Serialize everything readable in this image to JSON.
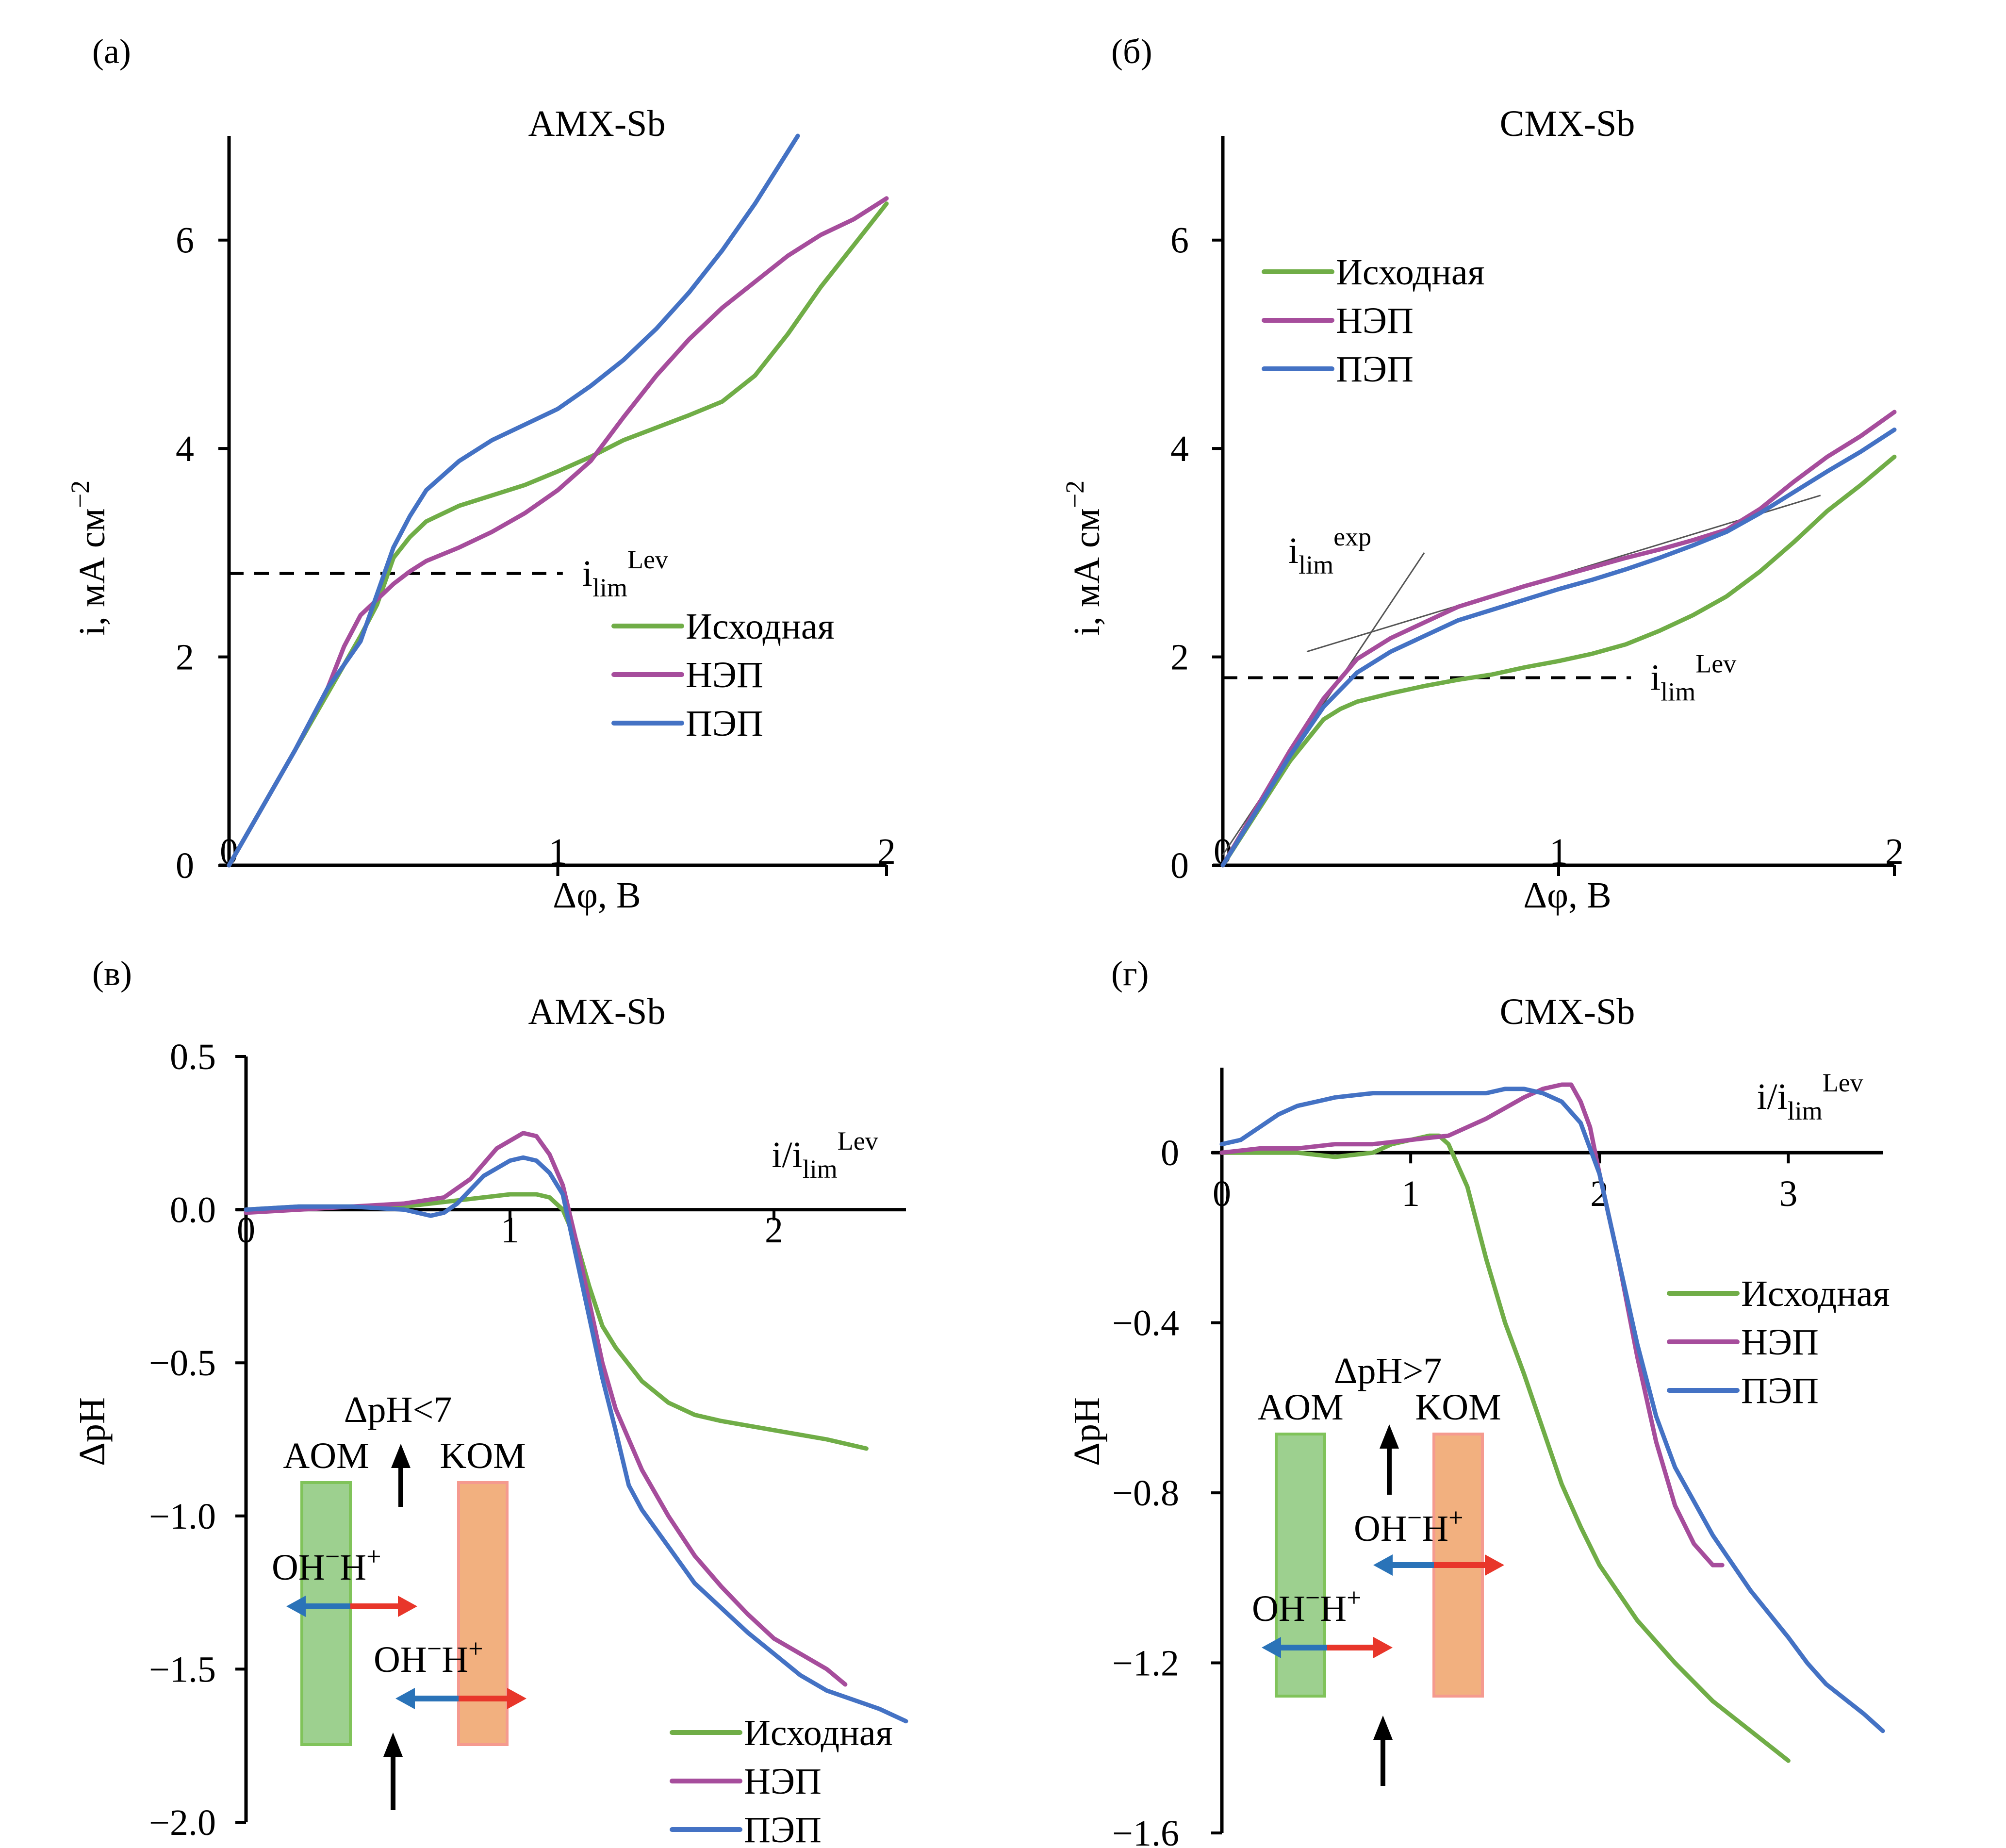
{
  "figure": {
    "colors": {
      "initial": "#70ad47",
      "nep": "#a64d9c",
      "pep": "#4472c4",
      "arrow_oh": "#2a73b8",
      "arrow_h": "#e8362a",
      "aom_fill": "#9dd08f",
      "aom_border": "#80c35a",
      "kom_fill": "#f2b07f",
      "kom_border": "#f59a8f"
    },
    "legend": [
      "Исходная",
      "НЭП",
      "ПЭП"
    ]
  },
  "chart_data": [
    {
      "id": "a",
      "tag": "(а)",
      "type": "line",
      "title": "AMX-Sb",
      "xlabel": "Δφ, В",
      "ylabel": "i, мА см",
      "ylabel_sup": "−2",
      "xlim": [
        0,
        2
      ],
      "ylim": [
        0,
        7
      ],
      "xticks": [
        0,
        1,
        2
      ],
      "yticks": [
        0,
        2,
        4,
        6
      ],
      "xtick_labels": [
        "0",
        "1",
        "2"
      ],
      "ytick_labels": [
        "0",
        "2",
        "4",
        "6"
      ],
      "grid": false,
      "legend_position": "center-right",
      "hline": {
        "y": 2.8,
        "x_end": 1.03,
        "label": "i",
        "label_sub": "lim",
        "label_sup": "Lev"
      },
      "series": [
        {
          "name": "Исходная",
          "x": [
            0,
            0.1,
            0.2,
            0.3,
            0.4,
            0.45,
            0.5,
            0.55,
            0.6,
            0.7,
            0.8,
            0.9,
            1.0,
            1.1,
            1.2,
            1.3,
            1.4,
            1.5,
            1.6,
            1.7,
            1.8,
            1.9,
            2.0
          ],
          "y": [
            0,
            0.55,
            1.1,
            1.65,
            2.2,
            2.5,
            2.95,
            3.15,
            3.3,
            3.45,
            3.55,
            3.65,
            3.78,
            3.92,
            4.08,
            4.2,
            4.32,
            4.45,
            4.7,
            5.1,
            5.55,
            5.95,
            6.35
          ]
        },
        {
          "name": "НЭП",
          "x": [
            0,
            0.1,
            0.2,
            0.3,
            0.35,
            0.4,
            0.45,
            0.5,
            0.55,
            0.6,
            0.7,
            0.8,
            0.9,
            1.0,
            1.1,
            1.2,
            1.3,
            1.4,
            1.5,
            1.6,
            1.7,
            1.8,
            1.9,
            2.0
          ],
          "y": [
            0,
            0.55,
            1.1,
            1.7,
            2.1,
            2.4,
            2.55,
            2.7,
            2.82,
            2.92,
            3.05,
            3.2,
            3.38,
            3.6,
            3.88,
            4.3,
            4.7,
            5.05,
            5.35,
            5.6,
            5.85,
            6.05,
            6.2,
            6.4
          ]
        },
        {
          "name": "ПЭП",
          "x": [
            0,
            0.1,
            0.2,
            0.3,
            0.4,
            0.45,
            0.5,
            0.55,
            0.6,
            0.7,
            0.8,
            0.9,
            1.0,
            1.1,
            1.2,
            1.3,
            1.4,
            1.5,
            1.6,
            1.7,
            1.73
          ],
          "y": [
            0,
            0.55,
            1.1,
            1.7,
            2.15,
            2.6,
            3.05,
            3.35,
            3.6,
            3.88,
            4.08,
            4.23,
            4.38,
            4.6,
            4.85,
            5.15,
            5.5,
            5.9,
            6.35,
            6.85,
            7.0
          ]
        }
      ]
    },
    {
      "id": "b",
      "tag": "(б)",
      "type": "line",
      "title": "CMX-Sb",
      "xlabel": "Δφ, В",
      "ylabel": "i, мА см",
      "ylabel_sup": "−2",
      "xlim": [
        0,
        2
      ],
      "ylim": [
        0,
        7
      ],
      "xticks": [
        0,
        1,
        2
      ],
      "yticks": [
        0,
        2,
        4,
        6
      ],
      "xtick_labels": [
        "0",
        "1",
        "2"
      ],
      "ytick_labels": [
        "0",
        "2",
        "4",
        "6"
      ],
      "grid": false,
      "legend_position": "top-left",
      "hline": {
        "y": 1.8,
        "x_end": 1.23,
        "label": "i",
        "label_sub": "lim",
        "label_sup": "Lev"
      },
      "fit_lines": [
        {
          "x": [
            0,
            0.6
          ],
          "y": [
            0.1,
            3.0
          ]
        },
        {
          "x": [
            0.25,
            1.78
          ],
          "y": [
            2.05,
            3.55
          ]
        }
      ],
      "annotation": {
        "label": "i",
        "label_sub": "lim",
        "label_sup": "exp"
      },
      "series": [
        {
          "name": "Исходная",
          "x": [
            0,
            0.1,
            0.2,
            0.3,
            0.35,
            0.4,
            0.5,
            0.6,
            0.7,
            0.8,
            0.9,
            1.0,
            1.1,
            1.2,
            1.3,
            1.4,
            1.5,
            1.6,
            1.7,
            1.8,
            1.9,
            2.0
          ],
          "y": [
            0,
            0.5,
            1.0,
            1.4,
            1.5,
            1.57,
            1.65,
            1.72,
            1.78,
            1.83,
            1.9,
            1.96,
            2.03,
            2.12,
            2.25,
            2.4,
            2.58,
            2.82,
            3.1,
            3.4,
            3.65,
            3.92
          ]
        },
        {
          "name": "НЭП",
          "x": [
            0,
            0.1,
            0.2,
            0.3,
            0.4,
            0.5,
            0.6,
            0.7,
            0.8,
            0.9,
            1.0,
            1.1,
            1.2,
            1.3,
            1.4,
            1.5,
            1.6,
            1.7,
            1.8,
            1.9,
            2.0
          ],
          "y": [
            0,
            0.55,
            1.1,
            1.6,
            1.98,
            2.18,
            2.33,
            2.48,
            2.58,
            2.68,
            2.77,
            2.86,
            2.95,
            3.03,
            3.12,
            3.22,
            3.42,
            3.68,
            3.92,
            4.12,
            4.35
          ]
        },
        {
          "name": "ПЭП",
          "x": [
            0,
            0.1,
            0.2,
            0.3,
            0.4,
            0.5,
            0.6,
            0.7,
            0.8,
            0.9,
            1.0,
            1.1,
            1.2,
            1.3,
            1.4,
            1.5,
            1.6,
            1.7,
            1.8,
            1.9,
            2.0
          ],
          "y": [
            0,
            0.52,
            1.05,
            1.52,
            1.85,
            2.05,
            2.2,
            2.35,
            2.45,
            2.55,
            2.65,
            2.74,
            2.84,
            2.95,
            3.07,
            3.2,
            3.38,
            3.58,
            3.78,
            3.97,
            4.18
          ]
        }
      ]
    },
    {
      "id": "c",
      "tag": "(в)",
      "type": "line",
      "title": "AMX-Sb",
      "xlabel": "i/i",
      "xlabel_sub": "lim",
      "xlabel_sup": "Lev",
      "ylabel": "ΔpH",
      "xlim": [
        0,
        2.5
      ],
      "ylim": [
        -2.0,
        0.5
      ],
      "xticks": [
        0,
        1,
        2
      ],
      "yticks": [
        0.5,
        0.0,
        -0.5,
        -1.0,
        -1.5,
        -2.0
      ],
      "xtick_labels": [
        "0",
        "1",
        "2"
      ],
      "ytick_labels": [
        "0.5",
        "0.0",
        "−0.5",
        "−1.0",
        "−1.5",
        "−2.0"
      ],
      "grid": false,
      "legend_position": "bottom-right",
      "inset": {
        "top_label": "ΔpH<7",
        "left_membrane": "AOM",
        "right_membrane": "KOM",
        "ion_left": "OH",
        "ion_left_sup": "−",
        "ion_right": "H",
        "ion_right_sup": "+"
      },
      "series": [
        {
          "name": "Исходная",
          "x": [
            0,
            0.2,
            0.4,
            0.6,
            0.8,
            0.9,
            1.0,
            1.1,
            1.15,
            1.2,
            1.25,
            1.3,
            1.35,
            1.4,
            1.5,
            1.6,
            1.7,
            1.8,
            2.0,
            2.2,
            2.35
          ],
          "y": [
            0,
            0.01,
            0.01,
            0.01,
            0.03,
            0.04,
            0.05,
            0.05,
            0.04,
            0.0,
            -0.1,
            -0.25,
            -0.38,
            -0.45,
            -0.56,
            -0.63,
            -0.67,
            -0.69,
            -0.72,
            -0.75,
            -0.78
          ]
        },
        {
          "name": "НЭП",
          "x": [
            0,
            0.2,
            0.4,
            0.6,
            0.75,
            0.85,
            0.95,
            1.05,
            1.1,
            1.15,
            1.2,
            1.25,
            1.3,
            1.35,
            1.4,
            1.5,
            1.6,
            1.7,
            1.8,
            1.9,
            2.0,
            2.1,
            2.2,
            2.27
          ],
          "y": [
            -0.01,
            0.0,
            0.01,
            0.02,
            0.04,
            0.1,
            0.2,
            0.25,
            0.24,
            0.18,
            0.08,
            -0.1,
            -0.3,
            -0.5,
            -0.65,
            -0.85,
            -1.0,
            -1.13,
            -1.23,
            -1.32,
            -1.4,
            -1.45,
            -1.5,
            -1.55
          ]
        },
        {
          "name": "ПЭП",
          "x": [
            0,
            0.2,
            0.4,
            0.6,
            0.7,
            0.75,
            0.8,
            0.9,
            1.0,
            1.05,
            1.1,
            1.15,
            1.2,
            1.25,
            1.3,
            1.35,
            1.4,
            1.45,
            1.5,
            1.6,
            1.7,
            1.8,
            1.9,
            2.0,
            2.1,
            2.2,
            2.3,
            2.4,
            2.5
          ],
          "y": [
            0,
            0.01,
            0.01,
            0.0,
            -0.02,
            -0.01,
            0.02,
            0.11,
            0.16,
            0.17,
            0.16,
            0.12,
            0.05,
            -0.15,
            -0.35,
            -0.55,
            -0.72,
            -0.9,
            -0.98,
            -1.1,
            -1.22,
            -1.3,
            -1.38,
            -1.45,
            -1.52,
            -1.57,
            -1.6,
            -1.63,
            -1.67
          ]
        }
      ]
    },
    {
      "id": "d",
      "tag": "(г)",
      "type": "line",
      "title": "CMX-Sb",
      "xlabel": "i/i",
      "xlabel_sub": "lim",
      "xlabel_sup": "Lev",
      "ylabel": "ΔpH",
      "xlim": [
        0,
        3.5
      ],
      "ylim": [
        -1.6,
        0.2
      ],
      "xticks": [
        0,
        1,
        2,
        3
      ],
      "yticks": [
        0,
        -0.4,
        -0.8,
        -1.2,
        -1.6
      ],
      "xtick_labels": [
        "0",
        "1",
        "2",
        "3"
      ],
      "ytick_labels": [
        "0",
        "−0.4",
        "−0.8",
        "−1.2",
        "−1.6"
      ],
      "grid": false,
      "legend_position": "center-right",
      "inset": {
        "top_label": "ΔpH>7",
        "left_membrane": "AOM",
        "right_membrane": "KOM",
        "ion_left": "OH",
        "ion_left_sup": "−",
        "ion_right": "H",
        "ion_right_sup": "+"
      },
      "series": [
        {
          "name": "Исходная",
          "x": [
            0,
            0.2,
            0.4,
            0.6,
            0.8,
            0.9,
            1.0,
            1.1,
            1.15,
            1.2,
            1.3,
            1.4,
            1.5,
            1.6,
            1.7,
            1.8,
            1.9,
            2.0,
            2.2,
            2.4,
            2.6,
            2.8,
            3.0
          ],
          "y": [
            0,
            0.0,
            0.0,
            -0.01,
            0.0,
            0.02,
            0.03,
            0.04,
            0.04,
            0.02,
            -0.08,
            -0.25,
            -0.4,
            -0.52,
            -0.65,
            -0.78,
            -0.88,
            -0.97,
            -1.1,
            -1.2,
            -1.29,
            -1.36,
            -1.43
          ]
        },
        {
          "name": "НЭП",
          "x": [
            0,
            0.2,
            0.4,
            0.6,
            0.8,
            1.0,
            1.2,
            1.4,
            1.6,
            1.7,
            1.8,
            1.85,
            1.9,
            1.95,
            2.0,
            2.1,
            2.2,
            2.3,
            2.4,
            2.5,
            2.6,
            2.65
          ],
          "y": [
            0,
            0.01,
            0.01,
            0.02,
            0.02,
            0.03,
            0.04,
            0.08,
            0.13,
            0.15,
            0.16,
            0.16,
            0.12,
            0.06,
            -0.05,
            -0.25,
            -0.48,
            -0.68,
            -0.83,
            -0.92,
            -0.97,
            -0.97
          ]
        },
        {
          "name": "ПЭП",
          "x": [
            0,
            0.1,
            0.2,
            0.3,
            0.4,
            0.5,
            0.6,
            0.8,
            1.0,
            1.2,
            1.4,
            1.5,
            1.6,
            1.7,
            1.8,
            1.9,
            2.0,
            2.1,
            2.2,
            2.3,
            2.4,
            2.6,
            2.8,
            3.0,
            3.1,
            3.2,
            3.4,
            3.5
          ],
          "y": [
            0.02,
            0.03,
            0.06,
            0.09,
            0.11,
            0.12,
            0.13,
            0.14,
            0.14,
            0.14,
            0.14,
            0.15,
            0.15,
            0.14,
            0.12,
            0.07,
            -0.05,
            -0.25,
            -0.45,
            -0.62,
            -0.74,
            -0.9,
            -1.03,
            -1.14,
            -1.2,
            -1.25,
            -1.32,
            -1.36
          ]
        }
      ]
    }
  ]
}
